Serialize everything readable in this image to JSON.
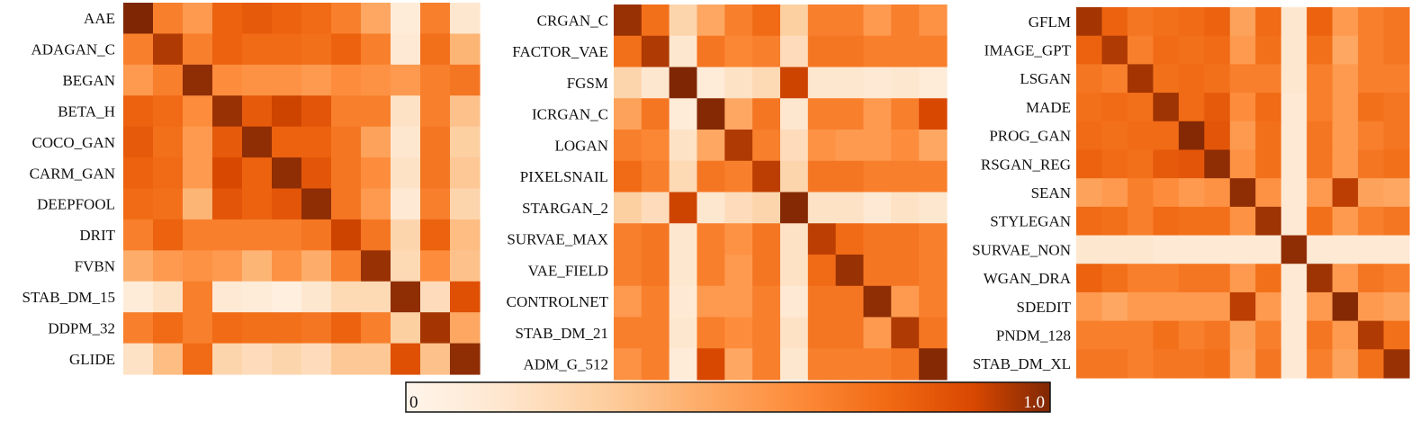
{
  "chart_data": [
    {
      "type": "heatmap",
      "labels": [
        "AAE",
        "ADAGAN_C",
        "BEGAN",
        "BETA_H",
        "COCO_GAN",
        "CARM_GAN",
        "DEEPFOOL",
        "DRIT",
        "FVBN",
        "STAB_DM_15",
        "DDPM_32",
        "GLIDE"
      ],
      "values": [
        [
          1.0,
          0.55,
          0.45,
          0.65,
          0.68,
          0.65,
          0.62,
          0.55,
          0.4,
          0.08,
          0.55,
          0.12
        ],
        [
          0.55,
          0.85,
          0.55,
          0.65,
          0.62,
          0.62,
          0.6,
          0.65,
          0.55,
          0.1,
          0.6,
          0.35
        ],
        [
          0.45,
          0.55,
          0.95,
          0.5,
          0.48,
          0.48,
          0.45,
          0.5,
          0.48,
          0.45,
          0.55,
          0.58
        ],
        [
          0.65,
          0.62,
          0.5,
          0.92,
          0.68,
          0.78,
          0.7,
          0.55,
          0.55,
          0.15,
          0.55,
          0.3
        ],
        [
          0.68,
          0.6,
          0.45,
          0.68,
          0.95,
          0.65,
          0.65,
          0.58,
          0.42,
          0.12,
          0.58,
          0.25
        ],
        [
          0.65,
          0.62,
          0.45,
          0.75,
          0.65,
          0.95,
          0.7,
          0.58,
          0.5,
          0.15,
          0.58,
          0.28
        ],
        [
          0.62,
          0.6,
          0.35,
          0.7,
          0.65,
          0.7,
          0.95,
          0.58,
          0.45,
          0.1,
          0.55,
          0.22
        ],
        [
          0.55,
          0.65,
          0.55,
          0.55,
          0.55,
          0.55,
          0.58,
          0.78,
          0.58,
          0.22,
          0.65,
          0.32
        ],
        [
          0.38,
          0.45,
          0.48,
          0.45,
          0.35,
          0.48,
          0.38,
          0.55,
          0.92,
          0.2,
          0.5,
          0.3
        ],
        [
          0.08,
          0.15,
          0.55,
          0.1,
          0.08,
          0.05,
          0.12,
          0.2,
          0.2,
          0.95,
          0.18,
          0.72
        ],
        [
          0.55,
          0.62,
          0.55,
          0.62,
          0.6,
          0.6,
          0.58,
          0.65,
          0.55,
          0.25,
          0.88,
          0.4
        ],
        [
          0.15,
          0.32,
          0.62,
          0.22,
          0.18,
          0.22,
          0.18,
          0.28,
          0.28,
          0.72,
          0.3,
          0.95
        ]
      ],
      "vmin": 0,
      "vmax": 1.0
    },
    {
      "type": "heatmap",
      "labels": [
        "CRGAN_C",
        "FACTOR_VAE",
        "FGSM",
        "ICRGAN_C",
        "LOGAN",
        "PIXELSNAIL",
        "STARGAN_2",
        "SURVAE_MAX",
        "VAE_FIELD",
        "CONTROLNET",
        "STAB_DM_21",
        "ADM_G_512"
      ],
      "values": [
        [
          0.92,
          0.6,
          0.22,
          0.4,
          0.55,
          0.62,
          0.25,
          0.55,
          0.55,
          0.45,
          0.55,
          0.48
        ],
        [
          0.6,
          0.85,
          0.12,
          0.58,
          0.52,
          0.55,
          0.18,
          0.58,
          0.58,
          0.55,
          0.55,
          0.55
        ],
        [
          0.22,
          0.12,
          1.0,
          0.08,
          0.15,
          0.2,
          0.78,
          0.12,
          0.12,
          0.1,
          0.12,
          0.08
        ],
        [
          0.42,
          0.58,
          0.08,
          0.98,
          0.4,
          0.58,
          0.12,
          0.55,
          0.55,
          0.45,
          0.55,
          0.75
        ],
        [
          0.55,
          0.52,
          0.15,
          0.4,
          0.85,
          0.55,
          0.18,
          0.48,
          0.45,
          0.45,
          0.5,
          0.4
        ],
        [
          0.62,
          0.55,
          0.2,
          0.58,
          0.55,
          0.82,
          0.22,
          0.58,
          0.58,
          0.55,
          0.55,
          0.55
        ],
        [
          0.25,
          0.18,
          0.78,
          0.12,
          0.18,
          0.22,
          0.98,
          0.15,
          0.15,
          0.1,
          0.15,
          0.12
        ],
        [
          0.55,
          0.58,
          0.12,
          0.55,
          0.48,
          0.58,
          0.15,
          0.82,
          0.62,
          0.58,
          0.58,
          0.55
        ],
        [
          0.55,
          0.58,
          0.12,
          0.55,
          0.45,
          0.58,
          0.15,
          0.62,
          0.92,
          0.58,
          0.58,
          0.55
        ],
        [
          0.45,
          0.55,
          0.1,
          0.45,
          0.45,
          0.55,
          0.1,
          0.58,
          0.58,
          0.95,
          0.45,
          0.55
        ],
        [
          0.55,
          0.55,
          0.12,
          0.55,
          0.5,
          0.55,
          0.15,
          0.58,
          0.58,
          0.45,
          0.85,
          0.58
        ],
        [
          0.48,
          0.55,
          0.08,
          0.75,
          0.4,
          0.55,
          0.12,
          0.55,
          0.55,
          0.55,
          0.58,
          0.98
        ]
      ],
      "vmin": 0,
      "vmax": 1.0
    },
    {
      "type": "heatmap",
      "labels": [
        "GFLM",
        "IMAGE_GPT",
        "LSGAN",
        "MADE",
        "PROG_GAN",
        "RSGAN_REG",
        "SEAN",
        "STYLEGAN",
        "SURVAE_NON",
        "WGAN_DRA",
        "SDEDIT",
        "PNDM_128",
        "STAB_DM_XL"
      ],
      "values": [
        [
          0.88,
          0.65,
          0.58,
          0.6,
          0.62,
          0.65,
          0.42,
          0.62,
          0.12,
          0.65,
          0.45,
          0.55,
          0.58
        ],
        [
          0.65,
          0.85,
          0.55,
          0.62,
          0.6,
          0.62,
          0.45,
          0.6,
          0.12,
          0.6,
          0.4,
          0.55,
          0.58
        ],
        [
          0.58,
          0.55,
          0.88,
          0.6,
          0.62,
          0.6,
          0.55,
          0.55,
          0.12,
          0.55,
          0.45,
          0.55,
          0.55
        ],
        [
          0.6,
          0.62,
          0.6,
          0.9,
          0.62,
          0.68,
          0.5,
          0.62,
          0.1,
          0.55,
          0.45,
          0.6,
          0.58
        ],
        [
          0.62,
          0.6,
          0.62,
          0.62,
          0.98,
          0.7,
          0.45,
          0.6,
          0.1,
          0.58,
          0.45,
          0.55,
          0.58
        ],
        [
          0.65,
          0.62,
          0.6,
          0.68,
          0.7,
          0.95,
          0.48,
          0.6,
          0.1,
          0.58,
          0.45,
          0.58,
          0.6
        ],
        [
          0.42,
          0.45,
          0.55,
          0.5,
          0.45,
          0.48,
          0.95,
          0.48,
          0.1,
          0.45,
          0.82,
          0.42,
          0.4
        ],
        [
          0.62,
          0.6,
          0.55,
          0.62,
          0.6,
          0.6,
          0.48,
          0.9,
          0.1,
          0.6,
          0.45,
          0.55,
          0.58
        ],
        [
          0.12,
          0.12,
          0.12,
          0.1,
          0.1,
          0.1,
          0.1,
          0.1,
          0.95,
          0.1,
          0.1,
          0.1,
          0.1
        ],
        [
          0.65,
          0.6,
          0.55,
          0.55,
          0.58,
          0.58,
          0.45,
          0.6,
          0.1,
          0.9,
          0.45,
          0.58,
          0.55
        ],
        [
          0.45,
          0.4,
          0.45,
          0.45,
          0.45,
          0.45,
          0.82,
          0.45,
          0.1,
          0.45,
          0.98,
          0.45,
          0.42
        ],
        [
          0.55,
          0.55,
          0.55,
          0.6,
          0.55,
          0.58,
          0.42,
          0.55,
          0.1,
          0.58,
          0.45,
          0.85,
          0.6
        ],
        [
          0.58,
          0.58,
          0.55,
          0.58,
          0.58,
          0.6,
          0.4,
          0.58,
          0.1,
          0.55,
          0.42,
          0.6,
          0.92
        ]
      ],
      "vmin": 0,
      "vmax": 1.0
    }
  ],
  "colorbar": {
    "min_label": "0",
    "max_label": "1.0"
  }
}
